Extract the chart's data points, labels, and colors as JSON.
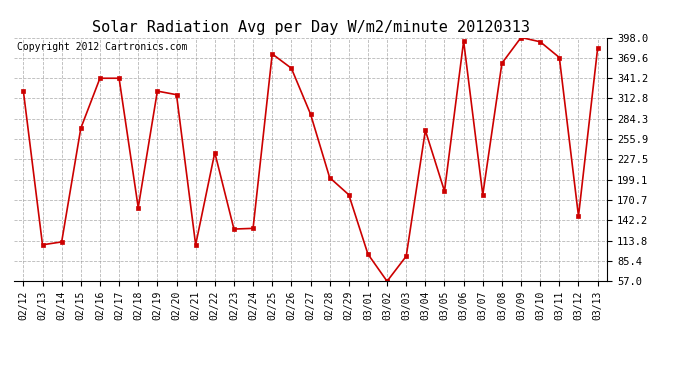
{
  "title": "Solar Radiation Avg per Day W/m2/minute 20120313",
  "copyright": "Copyright 2012 Cartronics.com",
  "dates": [
    "02/12",
    "02/13",
    "02/14",
    "02/15",
    "02/16",
    "02/17",
    "02/18",
    "02/19",
    "02/20",
    "02/21",
    "02/22",
    "02/23",
    "02/24",
    "02/25",
    "02/26",
    "02/27",
    "02/28",
    "02/29",
    "03/01",
    "03/02",
    "03/03",
    "03/04",
    "03/05",
    "03/06",
    "03/07",
    "03/08",
    "03/09",
    "03/10",
    "03/11",
    "03/12",
    "03/13"
  ],
  "values": [
    323.0,
    108.0,
    112.0,
    271.0,
    341.0,
    341.0,
    160.0,
    323.0,
    318.0,
    108.0,
    237.0,
    130.0,
    131.0,
    375.0,
    355.0,
    291.0,
    202.0,
    178.0,
    95.0,
    57.0,
    92.0,
    268.0,
    183.0,
    393.0,
    178.0,
    362.0,
    398.0,
    392.0,
    370.0,
    148.0,
    383.0
  ],
  "line_color": "#cc0000",
  "marker": "s",
  "marker_size": 3,
  "marker_color": "#cc0000",
  "ylim": [
    57.0,
    398.0
  ],
  "yticks": [
    57.0,
    85.4,
    113.8,
    142.2,
    170.7,
    199.1,
    227.5,
    255.9,
    284.3,
    312.8,
    341.2,
    369.6,
    398.0
  ],
  "background_color": "#ffffff",
  "grid_color": "#999999",
  "title_fontsize": 11,
  "copyright_fontsize": 7,
  "tick_fontsize": 7,
  "ytick_fontsize": 7.5
}
